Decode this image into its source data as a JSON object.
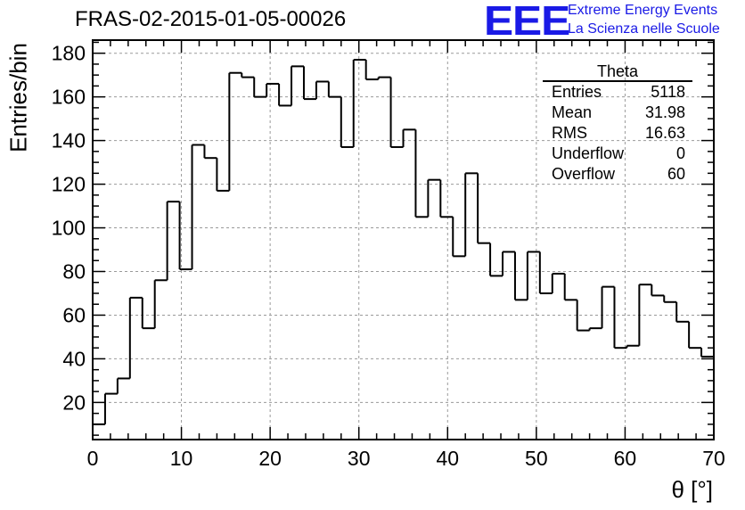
{
  "title": "FRAS-02-2015-01-05-00026",
  "logo": {
    "mark": "EEE",
    "line1": "Extreme Energy Events",
    "line2": "La Scienza nelle Scuole",
    "color": "#1a1ae6"
  },
  "stats": {
    "name": "Theta",
    "rows": [
      {
        "label": "Entries",
        "value": "5118"
      },
      {
        "label": "Mean",
        "value": "31.98"
      },
      {
        "label": "RMS",
        "value": "16.63"
      },
      {
        "label": "Underflow",
        "value": "0"
      },
      {
        "label": "Overflow",
        "value": "60"
      }
    ]
  },
  "chart_data": {
    "type": "histogram",
    "xlabel": "θ [°]",
    "ylabel": "Entries/bin",
    "xlim": [
      0,
      70
    ],
    "ylim": [
      3,
      186
    ],
    "bin_width": 1.4,
    "x_ticks": [
      0,
      10,
      20,
      30,
      40,
      50,
      60,
      70
    ],
    "y_ticks": [
      20,
      40,
      60,
      80,
      100,
      120,
      140,
      160,
      180
    ],
    "grid": true,
    "values": [
      10,
      24,
      31,
      68,
      54,
      76,
      112,
      81,
      138,
      132,
      117,
      171,
      169,
      160,
      166,
      156,
      174,
      159,
      167,
      160,
      137,
      177,
      168,
      169,
      137,
      145,
      105,
      122,
      105,
      87,
      125,
      93,
      78,
      89,
      67,
      89,
      70,
      79,
      67,
      53,
      54,
      73,
      45,
      46,
      74,
      69,
      66,
      57,
      45,
      41
    ]
  }
}
